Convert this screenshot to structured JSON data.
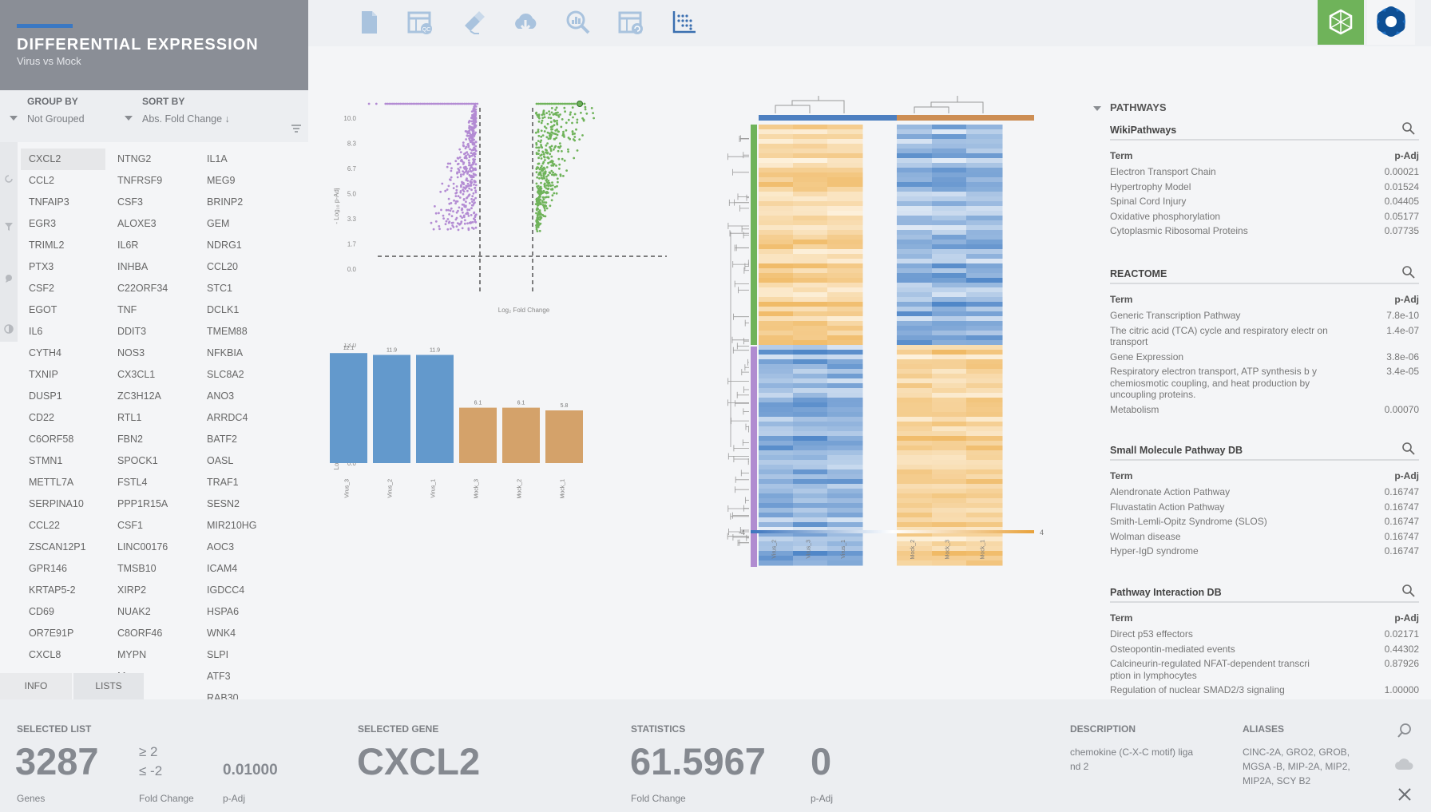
{
  "header": {
    "title": "DIFFERENTIAL EXPRESSION",
    "subtitle": "Virus vs Mock"
  },
  "toolbar_icons": [
    "document-icon",
    "table-qc-icon",
    "pipette-icon",
    "cloud-download-icon",
    "zoom-chart-icon",
    "table-refresh-icon",
    "scatter-plot-icon"
  ],
  "controls": {
    "group_by_label": "GROUP BY",
    "group_by_value": "Not Grouped",
    "sort_by_label": "SORT BY",
    "sort_by_value": "Abs. Fold Change ↓"
  },
  "genes": {
    "col1": [
      "CXCL2",
      "CCL2",
      "TNFAIP3",
      "EGR3",
      "TRIML2",
      "PTX3",
      "CSF2",
      "EGOT",
      "IL6",
      "CYTH4",
      "TXNIP",
      "DUSP1",
      "CD22",
      "C6ORF58",
      "STMN1",
      "METTL7A",
      "SERPINA10",
      "CCL22",
      "ZSCAN12P1",
      "GPR146",
      "KRTAP5-2",
      "CD69",
      "OR7E91P",
      "CXCL8"
    ],
    "col2": [
      "NTNG2",
      "TNFRSF9",
      "CSF3",
      "ALOXE3",
      "IL6R",
      "INHBA",
      "C22ORF34",
      "TNF",
      "DDIT3",
      "NOS3",
      "CX3CL1",
      "ZC3H12A",
      "RTL1",
      "FBN2",
      "SPOCK1",
      "FSTL4",
      "PPP1R15A",
      "CSF1",
      "LINC00176",
      "TMSB10",
      "XIRP2",
      "NUAK2",
      "C8ORF46",
      "MYPN",
      "M",
      "S"
    ],
    "col3": [
      "IL1A",
      "MEG9",
      "BRINP2",
      "GEM",
      "NDRG1",
      "CCL20",
      "STC1",
      "DCLK1",
      "TMEM88",
      "NFKBIA",
      "SLC8A2",
      "ANO3",
      "ARRDC4",
      "BATF2",
      "OASL",
      "TRAF1",
      "SESN2",
      "MIR210HG",
      "AOC3",
      "ICAM4",
      "IGDCC4",
      "HSPA6",
      "WNK4",
      "SLPI",
      "ATF3",
      "RAB30"
    ],
    "selected": "CXCL2"
  },
  "tabs": [
    "INFO",
    "LISTS"
  ],
  "volcano": {
    "ylabel": "- Log₁₀ p-Adj",
    "xlabel": "Log₂ Fold Change",
    "yticks": [
      "10.0",
      "8.3",
      "6.7",
      "5.0",
      "3.3",
      "1.7",
      "0.0"
    ]
  },
  "chart_data": [
    {
      "type": "bar",
      "categories": [
        "Virus_3",
        "Virus_2",
        "Virus_1",
        "Mock_3",
        "Mock_2",
        "Mock_1"
      ],
      "values": [
        12.1,
        11.9,
        11.9,
        6.1,
        6.1,
        5.8
      ],
      "ylabel": "Log₂ Normalized Expression",
      "ylim": [
        0,
        13.0
      ],
      "yticks": [
        "13.0",
        "11.4",
        "9.8",
        "8.1",
        "6.5",
        "4.9",
        "3.3",
        "1.6",
        "0.0"
      ],
      "colors": [
        "#6399cc",
        "#6399cc",
        "#6399cc",
        "#d4a26a",
        "#d4a26a",
        "#d4a26a"
      ]
    },
    {
      "type": "heatmap",
      "columns": [
        "Virus_2",
        "Virus_3",
        "Virus_1",
        "Mock_2",
        "Mock_3",
        "Mock_1"
      ],
      "scale_min": "-4",
      "scale_max": "4"
    }
  ],
  "pathways": {
    "title": "PATHWAYS",
    "sections": [
      {
        "name": "WikiPathways",
        "term_label": "Term",
        "padj_label": "p-Adj",
        "rows": [
          {
            "term": "Electron Transport Chain",
            "padj": "0.00021"
          },
          {
            "term": "Hypertrophy Model",
            "padj": "0.01524"
          },
          {
            "term": "Spinal Cord Injury",
            "padj": "0.04405"
          },
          {
            "term": "Oxidative phosphorylation",
            "padj": "0.05177"
          },
          {
            "term": "Cytoplasmic Ribosomal Proteins",
            "padj": "0.07735"
          }
        ]
      },
      {
        "name": "REACTOME",
        "term_label": "Term",
        "padj_label": "p-Adj",
        "rows": [
          {
            "term": "Generic Transcription Pathway",
            "padj": "7.8e-10"
          },
          {
            "term": "The citric acid (TCA) cycle and respiratory electr on transport",
            "padj": "1.4e-07"
          },
          {
            "term": "Gene Expression",
            "padj": "3.8e-06"
          },
          {
            "term": "Respiratory electron transport, ATP synthesis b y chemiosmotic coupling, and heat production by uncoupling proteins.",
            "padj": "3.4e-05"
          },
          {
            "term": "Metabolism",
            "padj": "0.00070"
          }
        ]
      },
      {
        "name": "Small Molecule Pathway DB",
        "term_label": "Term",
        "padj_label": "p-Adj",
        "rows": [
          {
            "term": "Alendronate Action Pathway",
            "padj": "0.16747"
          },
          {
            "term": "Fluvastatin Action Pathway",
            "padj": "0.16747"
          },
          {
            "term": "Smith-Lemli-Opitz Syndrome (SLOS)",
            "padj": "0.16747"
          },
          {
            "term": "Wolman disease",
            "padj": "0.16747"
          },
          {
            "term": "Hyper-IgD syndrome",
            "padj": "0.16747"
          }
        ]
      },
      {
        "name": "Pathway Interaction DB",
        "term_label": "Term",
        "padj_label": "p-Adj",
        "rows": [
          {
            "term": "Direct p53 effectors",
            "padj": "0.02171"
          },
          {
            "term": "Osteopontin-mediated events",
            "padj": "0.44302"
          },
          {
            "term": "Calcineurin-regulated NFAT-dependent transcri ption in lymphocytes",
            "padj": "0.87926"
          },
          {
            "term": "Regulation of nuclear SMAD2/3 signaling",
            "padj": "1.00000"
          }
        ]
      }
    ]
  },
  "bottom": {
    "selected_list_label": "SELECTED LIST",
    "genes_count": "3287",
    "genes_label": "Genes",
    "fc_upper": "≥  2",
    "fc_lower": "≤  -2",
    "fc_label": "Fold Change",
    "padj_value": "0.01000",
    "padj_label": "p-Adj",
    "selected_gene_label": "SELECTED GENE",
    "selected_gene": "CXCL2",
    "statistics_label": "STATISTICS",
    "stat_fc": "61.5967",
    "stat_fc_label": "Fold Change",
    "stat_padj": "0",
    "stat_padj_label": "p-Adj",
    "description_label": "DESCRIPTION",
    "description": "chemokine (C-X-C motif) liga nd 2",
    "aliases_label": "ALIASES",
    "aliases": "CINC-2A, GRO2, GROB, MGSA -B, MIP-2A, MIP2, MIP2A, SCY B2"
  }
}
